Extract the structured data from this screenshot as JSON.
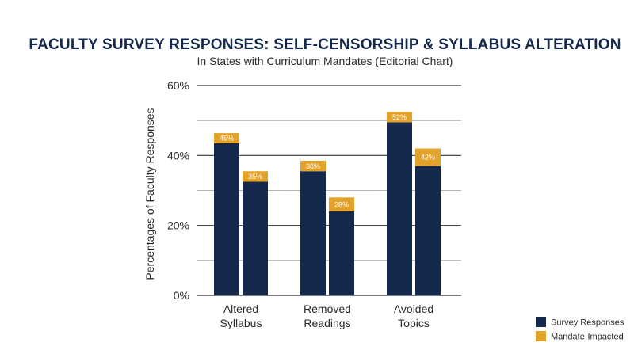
{
  "chart_data": {
    "type": "bar",
    "title": "FACULTY SURVEY RESPONSES: SELF-CENSORSHIP & SYLLABUS ALTERATION",
    "subtitle": "In States with Curriculum Mandates (Editorial Chart)",
    "ylabel": "Percentages of Faculty Responses",
    "xlabel": "",
    "ylim": [
      0,
      60
    ],
    "yticks": [
      {
        "value": 0,
        "label": "0%"
      },
      {
        "value": 20,
        "label": "20%"
      },
      {
        "value": 40,
        "label": "40%"
      },
      {
        "value": 60,
        "label": "60%"
      }
    ],
    "grid_values": [
      10,
      20,
      30,
      40,
      50,
      60
    ],
    "categories": [
      {
        "lines": [
          "Altered",
          "Syllabus"
        ]
      },
      {
        "lines": [
          "Removed",
          "Readings"
        ]
      },
      {
        "lines": [
          "Avoided",
          "Topics"
        ]
      }
    ],
    "bars": [
      {
        "category": 0,
        "slot": 0,
        "base": 43.5,
        "cap": 2.9,
        "label": "45%"
      },
      {
        "category": 0,
        "slot": 1,
        "base": 32.5,
        "cap": 3.0,
        "label": "35%"
      },
      {
        "category": 1,
        "slot": 0,
        "base": 35.5,
        "cap": 3.0,
        "label": "38%"
      },
      {
        "category": 1,
        "slot": 1,
        "base": 24.0,
        "cap": 4.0,
        "label": "28%"
      },
      {
        "category": 2,
        "slot": 0,
        "base": 49.5,
        "cap": 3.0,
        "label": "52%"
      },
      {
        "category": 2,
        "slot": 1,
        "base": 37.0,
        "cap": 5.0,
        "label": "42%"
      }
    ],
    "legend": {
      "position": "bottom-right",
      "items": [
        {
          "label": "Survey Responses",
          "color": "#14284b"
        },
        {
          "label": "Mandate-Impacted",
          "color": "#e3a22a"
        }
      ]
    },
    "colors": {
      "primary": "#14284b",
      "accent": "#e3a22a",
      "grid": "#555555"
    },
    "grid": true
  }
}
